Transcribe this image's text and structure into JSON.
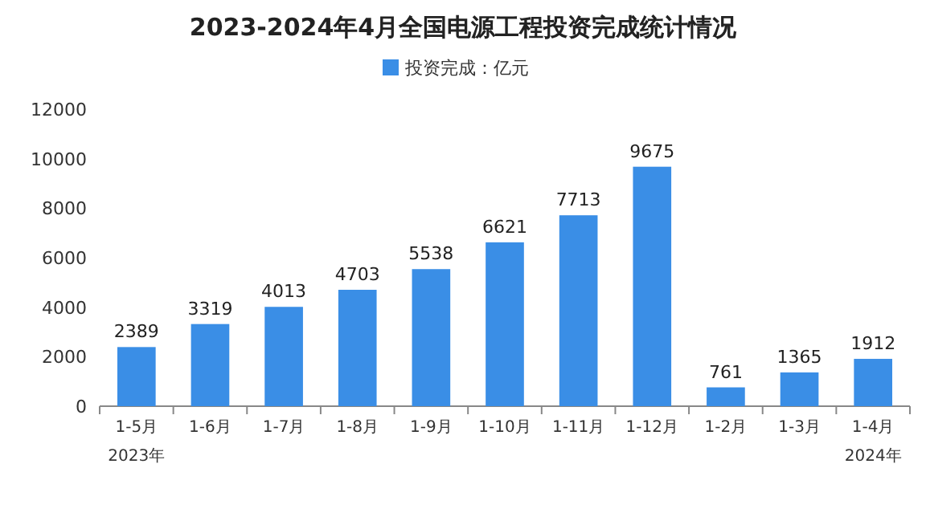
{
  "chart_data": {
    "type": "bar",
    "title": "2023-2024年4月全国电源工程投资完成统计情况",
    "categories": [
      "1-5月",
      "1-6月",
      "1-7月",
      "1-8月",
      "1-9月",
      "1-10月",
      "1-11月",
      "1-12月",
      "1-2月",
      "1-3月",
      "1-4月"
    ],
    "series": [
      {
        "name": "投资完成：亿元",
        "color": "#3a8ee6",
        "values": [
          2389,
          3319,
          4013,
          4703,
          5538,
          6621,
          7713,
          9675,
          761,
          1365,
          1912
        ]
      }
    ],
    "ylim": [
      0,
      12000
    ],
    "yticks": [
      0,
      2000,
      4000,
      6000,
      8000,
      10000,
      12000
    ],
    "data_labels": true,
    "legend": "top",
    "grid": false,
    "annotations": [
      "2023年",
      "2024年"
    ]
  }
}
